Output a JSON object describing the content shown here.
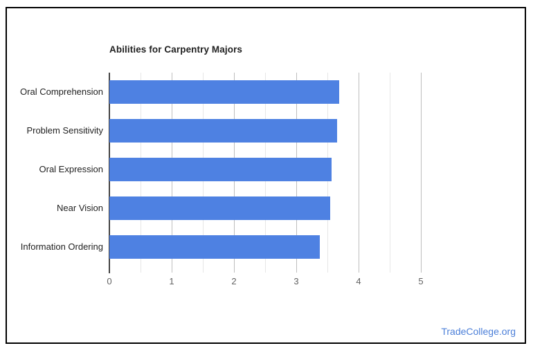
{
  "frame": {
    "border_color": "#000000",
    "background": "#ffffff"
  },
  "chart_data": {
    "type": "bar",
    "orientation": "horizontal",
    "title": "Abilities for Carpentry Majors",
    "categories": [
      "Oral Comprehension",
      "Problem Sensitivity",
      "Oral Expression",
      "Near Vision",
      "Information Ordering"
    ],
    "values": [
      3.69,
      3.66,
      3.57,
      3.54,
      3.38
    ],
    "xlabel": "",
    "ylabel": "",
    "xlim": [
      0,
      5
    ],
    "x_major_ticks": [
      0,
      1,
      2,
      3,
      4,
      5
    ],
    "x_minor_step": 0.5,
    "grid": true,
    "legend": "none",
    "bar_color": "#4e81e2",
    "axis_line_color": "#424242",
    "major_grid_color": "#bdbdbd",
    "minor_grid_color": "#e6e6e6",
    "title_color": "#212121",
    "category_label_color": "#212121",
    "tick_label_color": "#616161"
  },
  "footer": {
    "link_text": "TradeCollege.org",
    "link_color": "#4a7ed8"
  }
}
